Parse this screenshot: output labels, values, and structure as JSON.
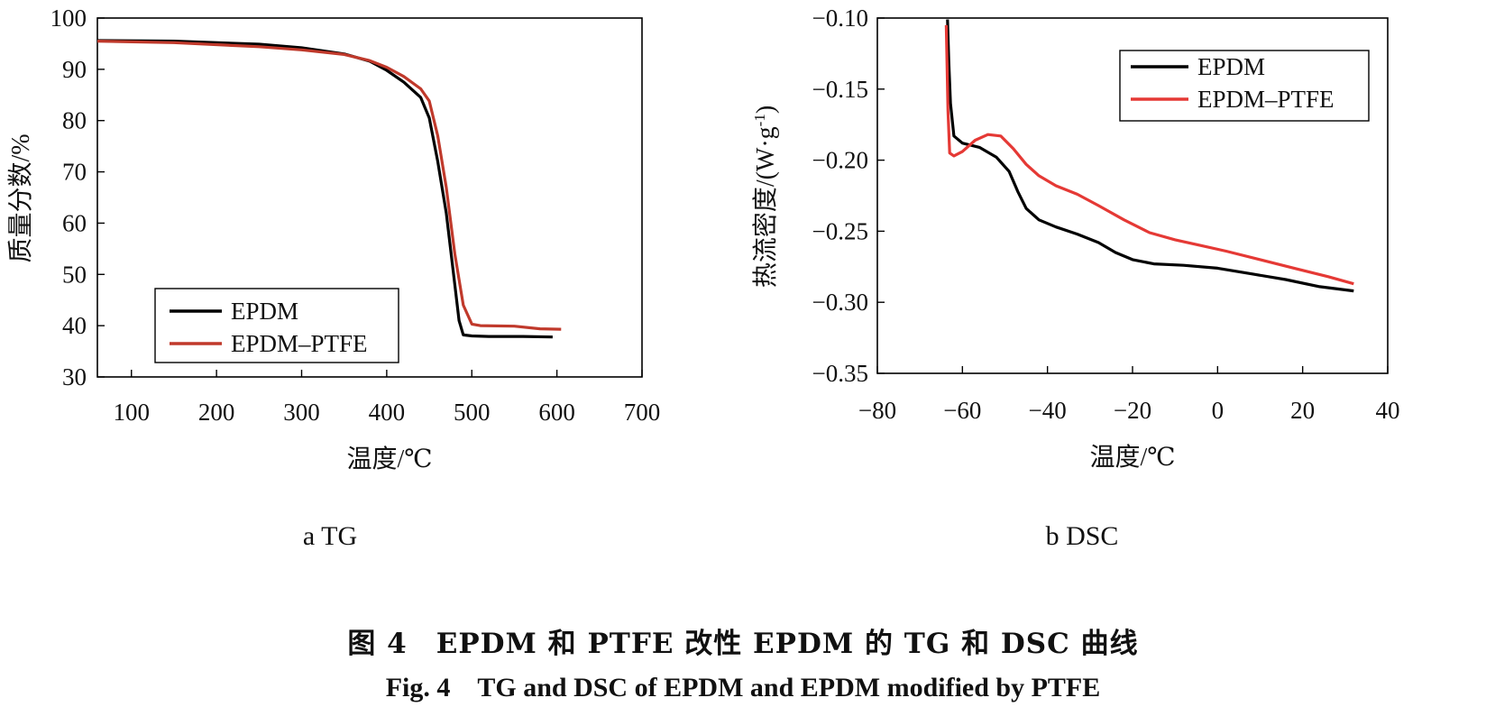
{
  "figure": {
    "caption_cn": "图 4　EPDM 和 PTFE 改性 EPDM 的 TG 和 DSC 曲线",
    "caption_en": "Fig. 4　TG and DSC of EPDM and EPDM modified by PTFE"
  },
  "chart_data": [
    {
      "type": "line",
      "subplot_label": "a TG",
      "xlabel": "温度/℃",
      "ylabel": "质量分数/%",
      "xlim": [
        60,
        700
      ],
      "ylim": [
        30,
        100
      ],
      "xticks": [
        100,
        200,
        300,
        400,
        500,
        600,
        700
      ],
      "yticks": [
        30,
        40,
        50,
        60,
        70,
        80,
        90,
        100
      ],
      "grid": false,
      "legend_position": "lower-left",
      "series": [
        {
          "name": "EPDM",
          "color": "#000000",
          "x": [
            60,
            150,
            250,
            300,
            350,
            380,
            400,
            420,
            440,
            450,
            460,
            470,
            480,
            485,
            490,
            500,
            520,
            560,
            595
          ],
          "y": [
            95.6,
            95.5,
            94.9,
            94.2,
            93.0,
            91.6,
            89.8,
            87.5,
            84.5,
            80.5,
            72.0,
            62.0,
            48.0,
            41.0,
            38.2,
            38.0,
            37.9,
            37.9,
            37.8
          ]
        },
        {
          "name": "EPDM–PTFE",
          "color": "#c0392b",
          "x": [
            60,
            150,
            250,
            300,
            350,
            380,
            400,
            420,
            440,
            450,
            460,
            470,
            480,
            490,
            500,
            510,
            550,
            580,
            605
          ],
          "y": [
            95.5,
            95.2,
            94.4,
            93.8,
            92.9,
            91.7,
            90.4,
            88.6,
            86.2,
            83.8,
            77.0,
            67.0,
            54.0,
            44.0,
            40.3,
            40.0,
            39.9,
            39.4,
            39.3
          ]
        }
      ]
    },
    {
      "type": "line",
      "subplot_label": "b DSC",
      "xlabel": "温度/℃",
      "ylabel": "热流密度/(W·g-1)",
      "xlim": [
        -80,
        40
      ],
      "ylim": [
        -0.35,
        -0.1
      ],
      "xticks": [
        -80,
        -60,
        -40,
        -20,
        0,
        20,
        40
      ],
      "xtick_labels": [
        "−80",
        "−60",
        "−40",
        "−20",
        "0",
        "20",
        "40"
      ],
      "yticks": [
        -0.35,
        -0.3,
        -0.25,
        -0.2,
        -0.15,
        -0.1
      ],
      "ytick_labels": [
        "−0.35",
        "−0.30",
        "−0.25",
        "−0.20",
        "−0.15",
        "−0.10"
      ],
      "grid": false,
      "legend_position": "top-right",
      "series": [
        {
          "name": "EPDM",
          "color": "#000000",
          "x": [
            -63.5,
            -63.2,
            -62.8,
            -62.0,
            -60.0,
            -56.0,
            -52.0,
            -49.0,
            -47.0,
            -45.0,
            -42.0,
            -38.0,
            -33.0,
            -28.0,
            -24.0,
            -20.0,
            -15.0,
            -8.0,
            0.0,
            8.0,
            16.0,
            24.0,
            32.0
          ],
          "y": [
            -0.101,
            -0.13,
            -0.16,
            -0.183,
            -0.188,
            -0.191,
            -0.198,
            -0.208,
            -0.222,
            -0.234,
            -0.242,
            -0.247,
            -0.252,
            -0.258,
            -0.265,
            -0.27,
            -0.273,
            -0.274,
            -0.276,
            -0.28,
            -0.284,
            -0.289,
            -0.292
          ]
        },
        {
          "name": "EPDM–PTFE",
          "color": "#e53935",
          "x": [
            -63.8,
            -63.4,
            -63.0,
            -62.0,
            -60.0,
            -57.0,
            -54.0,
            -51.0,
            -48.0,
            -45.0,
            -42.0,
            -38.0,
            -33.0,
            -28.0,
            -22.0,
            -16.0,
            -10.0,
            -4.0,
            2.0,
            10.0,
            18.0,
            26.0,
            32.0
          ],
          "y": [
            -0.105,
            -0.165,
            -0.195,
            -0.197,
            -0.194,
            -0.186,
            -0.182,
            -0.183,
            -0.192,
            -0.203,
            -0.211,
            -0.218,
            -0.224,
            -0.232,
            -0.242,
            -0.251,
            -0.256,
            -0.26,
            -0.264,
            -0.27,
            -0.276,
            -0.282,
            -0.287
          ]
        }
      ]
    }
  ]
}
